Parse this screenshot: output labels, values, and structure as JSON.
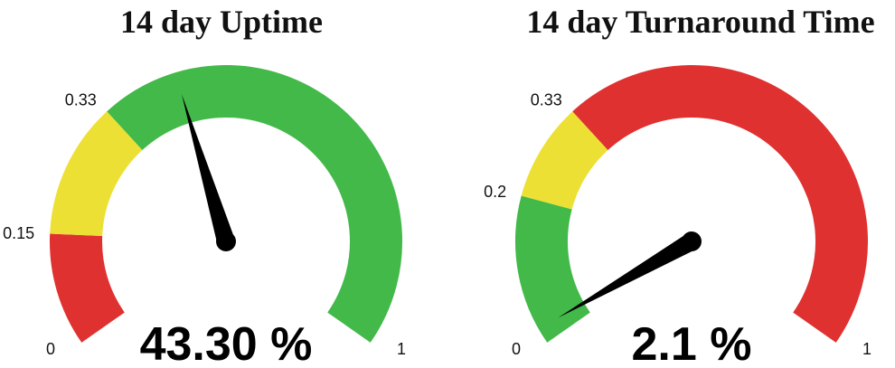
{
  "chart_data": [
    {
      "type": "gauge",
      "title": "14 day Uptime",
      "range": [
        0,
        1
      ],
      "value": 0.433,
      "value_label": "43.30 %",
      "bands": [
        {
          "from": 0,
          "to": 0.15,
          "color": "#e03131"
        },
        {
          "from": 0.15,
          "to": 0.33,
          "color": "#ede035"
        },
        {
          "from": 0.33,
          "to": 1,
          "color": "#43b94a"
        }
      ],
      "tick_labels": [
        {
          "value": 0,
          "text": "0"
        },
        {
          "value": 0.15,
          "text": "0.15"
        },
        {
          "value": 0.33,
          "text": "0.33"
        },
        {
          "value": 1,
          "text": "1"
        }
      ]
    },
    {
      "type": "gauge",
      "title": "14 day Turnaround Time",
      "range": [
        0,
        1
      ],
      "value": 0.021,
      "value_label": "2.1 %",
      "bands": [
        {
          "from": 0,
          "to": 0.2,
          "color": "#43b94a"
        },
        {
          "from": 0.2,
          "to": 0.33,
          "color": "#ede035"
        },
        {
          "from": 0.33,
          "to": 1,
          "color": "#e03131"
        }
      ],
      "tick_labels": [
        {
          "value": 0,
          "text": "0"
        },
        {
          "value": 0.2,
          "text": "0.2"
        },
        {
          "value": 0.33,
          "text": "0.33"
        },
        {
          "value": 1,
          "text": "1"
        }
      ]
    }
  ]
}
